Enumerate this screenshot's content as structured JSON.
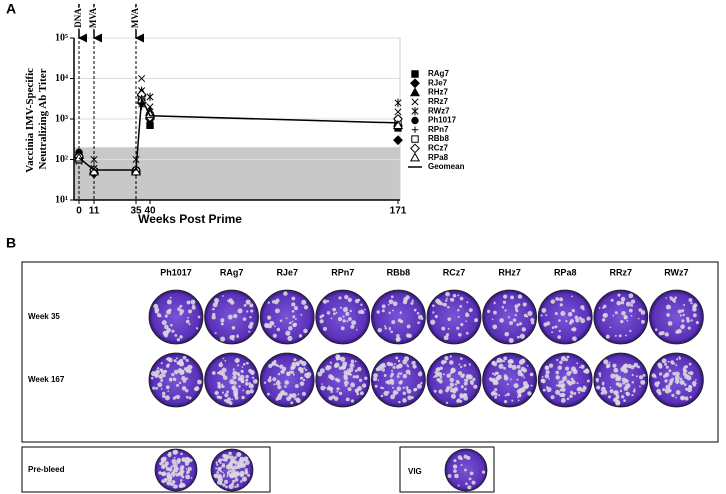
{
  "chart_data": {
    "type": "scatter",
    "y_label": "Vaccinia IMV-Specific Neutralizing Ab Titer",
    "x_label": "Weeks Post Prime",
    "x": [
      0,
      11,
      35,
      37,
      40,
      171
    ],
    "xticks": [
      0,
      11,
      35,
      40,
      171
    ],
    "ylim": [
      10,
      100000
    ],
    "yticks": [
      {
        "value": 10,
        "label": "10¹"
      },
      {
        "value": 100,
        "label": "10²"
      },
      {
        "value": 1000,
        "label": "10³"
      },
      {
        "value": 10000,
        "label": "10⁴"
      },
      {
        "value": 100000,
        "label": "10⁵"
      }
    ],
    "log_y": true,
    "grid": true,
    "shaded_ylim": [
      10,
      200
    ],
    "annotations": [
      {
        "text": "DNA",
        "x": 0
      },
      {
        "text": "MVA",
        "x": 11
      },
      {
        "text": "MVA",
        "x": 35
      }
    ],
    "legend": "right",
    "series": [
      {
        "name": "RAg7",
        "marker": "square",
        "color": "#000",
        "values": [
          120,
          50,
          50,
          3000,
          700,
          600
        ]
      },
      {
        "name": "RJe7",
        "marker": "diamond",
        "color": "#000",
        "values": [
          110,
          45,
          50,
          2500,
          1000,
          300
        ]
      },
      {
        "name": "RHz7",
        "marker": "triangle",
        "color": "#000",
        "values": [
          130,
          55,
          55,
          4500,
          1500,
          800
        ]
      },
      {
        "name": "RRz7",
        "marker": "x",
        "color": "#000",
        "values": [
          90,
          100,
          100,
          10000,
          2000,
          1500
        ]
      },
      {
        "name": "RWz7",
        "marker": "asterisk",
        "color": "#000",
        "values": [
          100,
          60,
          55,
          5000,
          3500,
          2500
        ]
      },
      {
        "name": "Ph1017",
        "marker": "circle",
        "color": "#000",
        "values": [
          150,
          50,
          55,
          3000,
          1000,
          1000
        ]
      },
      {
        "name": "RPn7",
        "marker": "plus",
        "color": "#000",
        "values": [
          110,
          60,
          55,
          2000,
          1500,
          700
        ]
      },
      {
        "name": "RBb8",
        "marker": "square-open",
        "color": "#000",
        "values": [
          100,
          50,
          50,
          3500,
          1200,
          900
        ]
      },
      {
        "name": "RCz7",
        "marker": "diamond-open",
        "color": "#000",
        "values": [
          120,
          55,
          55,
          4000,
          1100,
          1000
        ]
      },
      {
        "name": "RPa8",
        "marker": "triangle-open",
        "color": "#000",
        "values": [
          110,
          50,
          50,
          3000,
          1300,
          700
        ]
      },
      {
        "name": "Geomean",
        "marker": "line",
        "color": "#000",
        "values": [
          110,
          55,
          55,
          3200,
          1200,
          800
        ]
      }
    ]
  },
  "panel_labels": [
    "A",
    "B"
  ],
  "panel_b": {
    "columns": [
      "Ph1017",
      "RAg7",
      "RJe7",
      "RPn7",
      "RBb8",
      "RCz7",
      "RHz7",
      "RPa8",
      "RRz7",
      "RWz7"
    ],
    "rows": [
      "Week 35",
      "Week 167"
    ],
    "controls": [
      "Pre-bleed",
      "VIG"
    ]
  }
}
